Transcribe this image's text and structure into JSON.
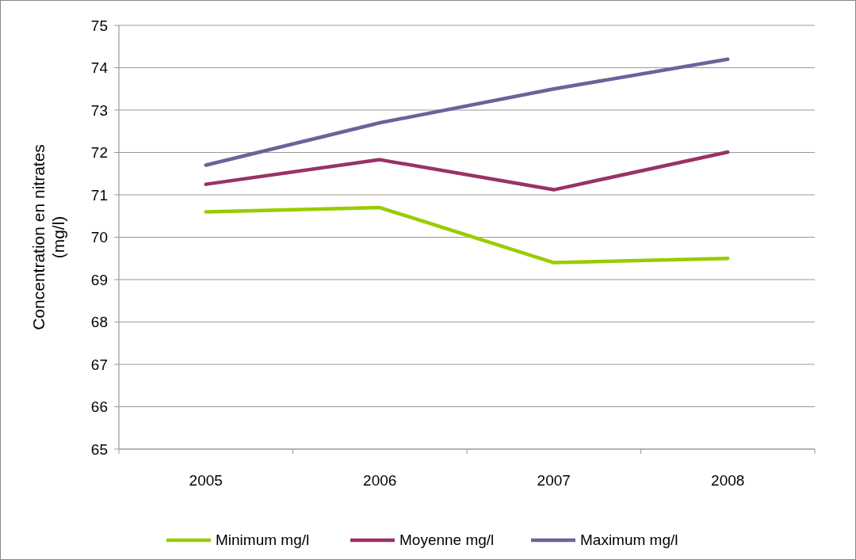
{
  "chart_data": {
    "type": "line",
    "ylabel": "Concentration en nitrates (mg/l)",
    "categories": [
      "2005",
      "2006",
      "2007",
      "2008"
    ],
    "series": [
      {
        "name": "Minimum mg/l",
        "color": "#99cc00",
        "values": [
          70.6,
          70.7,
          69.4,
          69.5
        ]
      },
      {
        "name": "Moyenne mg/l",
        "color": "#993366",
        "values": [
          71.25,
          71.83,
          71.12,
          72.01
        ]
      },
      {
        "name": "Maximum mg/l",
        "color": "#666699",
        "values": [
          71.7,
          72.7,
          73.5,
          74.2
        ]
      }
    ],
    "ylim": [
      65,
      75
    ],
    "yticks": [
      65,
      66,
      67,
      68,
      69,
      70,
      71,
      72,
      73,
      74,
      75
    ],
    "grid": "y",
    "legend": "bottom",
    "marker": "none",
    "line_style": "solid"
  }
}
